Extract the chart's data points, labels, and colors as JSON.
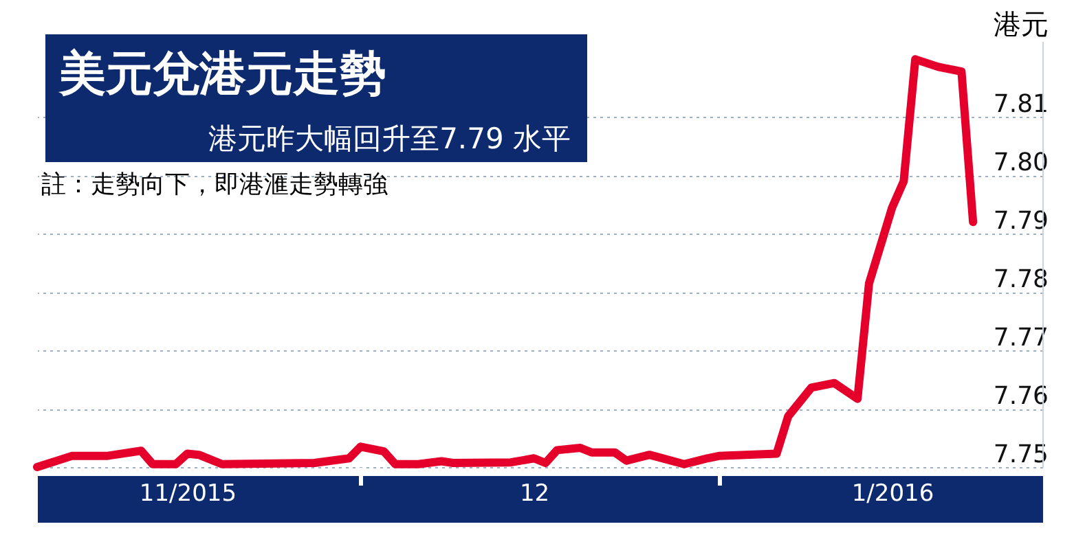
{
  "chart_data": {
    "type": "line",
    "title": "美元兌港元走勢",
    "subtitle": "港元昨大幅回升至7.79 水平",
    "ylabel": "港元",
    "annotations": [
      "註：走勢向下，即港滙走勢轉強"
    ],
    "x": [
      "2015-11-03",
      "2015-11-06",
      "2015-11-09",
      "2015-11-12",
      "2015-11-13",
      "2015-11-15",
      "2015-11-16",
      "2015-11-17",
      "2015-11-19",
      "2015-11-27",
      "2015-11-30",
      "2015-12-01",
      "2015-12-03",
      "2015-12-04",
      "2015-12-06",
      "2015-12-08",
      "2015-12-09",
      "2015-12-14",
      "2015-12-16",
      "2015-12-17",
      "2015-12-18",
      "2015-12-20",
      "2015-12-21",
      "2015-12-23",
      "2015-12-24",
      "2015-12-26",
      "2015-12-29",
      "2015-12-31",
      "2016-01-01",
      "2016-01-06",
      "2016-01-07",
      "2016-01-09",
      "2016-01-11",
      "2016-01-13",
      "2016-01-14",
      "2016-01-16",
      "2016-01-17",
      "2016-01-18",
      "2016-01-20",
      "2016-01-22",
      "2016-01-23"
    ],
    "series": [
      {
        "color": "#e4002b",
        "values": [
          7.75,
          7.7519,
          7.7519,
          7.7528,
          7.7505,
          7.7505,
          7.7523,
          7.7521,
          7.7505,
          7.7507,
          7.7515,
          7.7535,
          7.7527,
          7.7505,
          7.7505,
          7.751,
          7.7507,
          7.7508,
          7.7515,
          7.7507,
          7.7529,
          7.7533,
          7.7525,
          7.7525,
          7.7511,
          7.7521,
          7.7505,
          7.7515,
          7.7519,
          7.7523,
          7.7587,
          7.7636,
          7.7644,
          7.7617,
          7.7815,
          7.7945,
          7.799,
          7.8199,
          7.8186,
          7.8178,
          7.792
        ]
      }
    ],
    "xlim": [
      "2015-11-03",
      "2016-01-29"
    ],
    "xticks": [
      {
        "value": "2015-11-16",
        "label": "11/2015"
      },
      {
        "value": "2015-12-01",
        "label": null
      },
      {
        "value": "2015-12-16",
        "label": "12"
      },
      {
        "value": "2016-01-01",
        "label": null
      },
      {
        "value": "2016-01-16",
        "label": "1/2016"
      }
    ],
    "ylim": [
      7.75,
      7.823
    ],
    "yticks": [
      {
        "value": 7.75,
        "label": "7.75"
      },
      {
        "value": 7.76,
        "label": "7.76"
      },
      {
        "value": 7.77,
        "label": "7.77"
      },
      {
        "value": 7.78,
        "label": "7.78"
      },
      {
        "value": 7.79,
        "label": "7.79"
      },
      {
        "value": 7.8,
        "label": "7.80"
      },
      {
        "value": 7.81,
        "label": "7.81"
      }
    ],
    "grid": "y",
    "line_style": "solid",
    "marker": "none",
    "legend": false
  }
}
